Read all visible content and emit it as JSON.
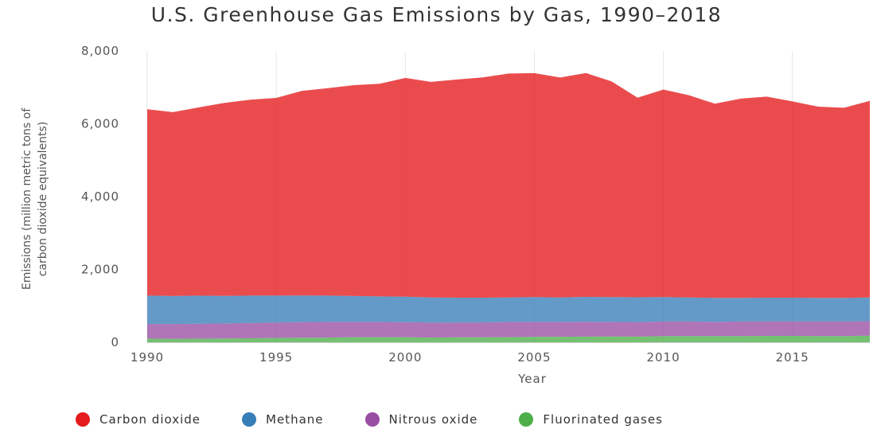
{
  "chart_data": {
    "type": "area",
    "stacked": true,
    "title": "U.S. Greenhouse Gas Emissions by Gas, 1990–2018",
    "xlabel": "Year",
    "ylabel": "Emissions (million metric tons of carbon dioxide equivalents)",
    "xlim": [
      1990,
      2018
    ],
    "ylim": [
      0,
      8000
    ],
    "x_ticks": [
      1990,
      1995,
      2000,
      2005,
      2010,
      2015
    ],
    "y_ticks": [
      0,
      2000,
      4000,
      6000,
      8000
    ],
    "y_tick_labels": [
      "0",
      "2,000",
      "4,000",
      "6,000",
      "8,000"
    ],
    "grid": "vertical",
    "legend_position": "bottom",
    "x": [
      1990,
      1991,
      1992,
      1993,
      1994,
      1995,
      1996,
      1997,
      1998,
      1999,
      2000,
      2001,
      2002,
      2003,
      2004,
      2005,
      2006,
      2007,
      2008,
      2009,
      2010,
      2011,
      2012,
      2013,
      2014,
      2015,
      2016,
      2017,
      2018
    ],
    "series": [
      {
        "name": "Fluorinated gases",
        "color": "#4daf4a",
        "values": [
          100,
          95,
          100,
          105,
          110,
          120,
          125,
          130,
          140,
          140,
          140,
          130,
          135,
          135,
          140,
          150,
          150,
          155,
          160,
          155,
          170,
          170,
          170,
          170,
          175,
          175,
          170,
          170,
          180
        ]
      },
      {
        "name": "Nitrous oxide",
        "color": "#984ea3",
        "values": [
          400,
          405,
          410,
          410,
          420,
          420,
          430,
          430,
          420,
          420,
          410,
          410,
          410,
          410,
          420,
          410,
          410,
          410,
          400,
          400,
          400,
          400,
          390,
          400,
          400,
          400,
          400,
          400,
          400
        ]
      },
      {
        "name": "Methane",
        "color": "#377eb8",
        "values": [
          780,
          770,
          770,
          760,
          750,
          740,
          730,
          720,
          710,
          700,
          700,
          690,
          680,
          680,
          670,
          680,
          670,
          680,
          680,
          680,
          670,
          660,
          660,
          650,
          650,
          650,
          650,
          650,
          650
        ]
      },
      {
        "name": "Carbon dioxide",
        "color": "#e41a1c",
        "values": [
          5120,
          5050,
          5170,
          5300,
          5380,
          5430,
          5620,
          5700,
          5790,
          5840,
          6010,
          5920,
          5990,
          6050,
          6150,
          6150,
          6040,
          6150,
          5920,
          5480,
          5700,
          5550,
          5330,
          5470,
          5520,
          5390,
          5250,
          5220,
          5400
        ]
      }
    ]
  }
}
